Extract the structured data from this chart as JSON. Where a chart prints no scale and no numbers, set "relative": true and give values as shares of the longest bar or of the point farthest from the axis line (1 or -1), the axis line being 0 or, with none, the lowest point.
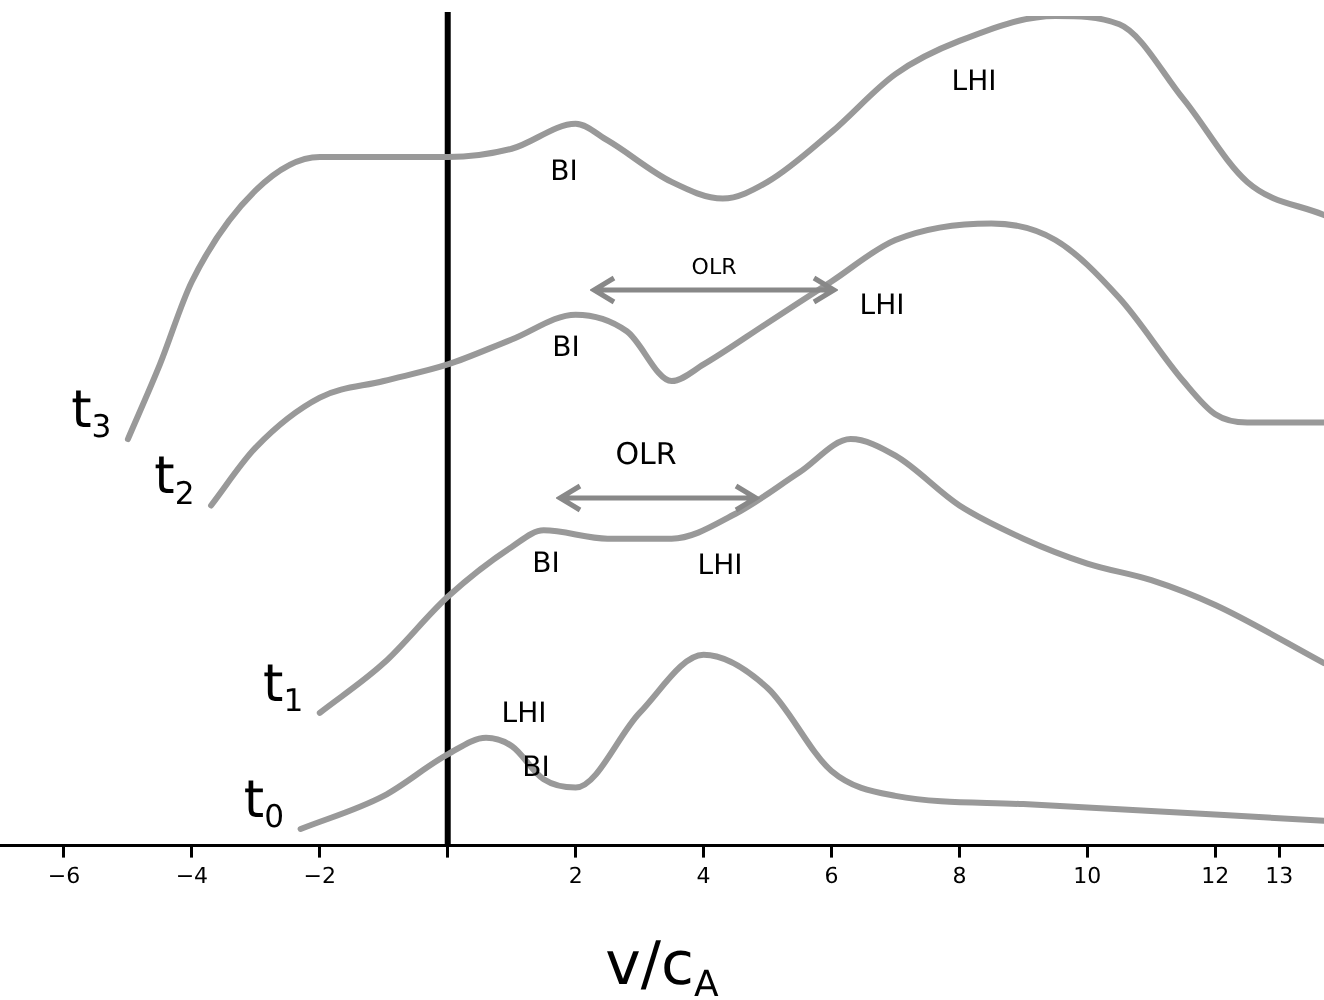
{
  "chart_data": {
    "type": "line",
    "relative": true,
    "xlabel": "v/c$_{A}$",
    "xlim": [
      -7,
      13.7
    ],
    "xticks": [
      -6,
      -4,
      -2,
      {
        "value": 0,
        "label": null
      },
      2,
      4,
      6,
      8,
      10,
      12,
      13
    ],
    "legend": false,
    "grid": false,
    "marker": "none",
    "line_style": "solid",
    "tick_labels": "x",
    "ref_lines": [
      {
        "axis": "x",
        "value": 0,
        "color": "#000000"
      }
    ],
    "series": [
      {
        "name": "t$_{3}$",
        "color": "#999999",
        "x": [
          -5,
          -4.5,
          -4,
          -3,
          -2,
          -1,
          0,
          1,
          2,
          2.5,
          3.5,
          4.3,
          5,
          6,
          7,
          8,
          9.5,
          10.5,
          11.5,
          12.5,
          13.7
        ],
        "values": [
          0.49,
          0.58,
          0.68,
          0.79,
          0.83,
          0.83,
          0.83,
          0.84,
          0.87,
          0.85,
          0.8,
          0.78,
          0.8,
          0.86,
          0.93,
          0.97,
          1.0,
          0.99,
          0.9,
          0.8,
          0.76
        ]
      },
      {
        "name": "t$_{2}$",
        "color": "#999999",
        "x": [
          -3.7,
          -3,
          -2,
          -1,
          0,
          1,
          2,
          2.8,
          3.5,
          4,
          5,
          6,
          7,
          8.5,
          9.5,
          10.5,
          11.5,
          12,
          12.5,
          13.7
        ],
        "values": [
          0.41,
          0.48,
          0.54,
          0.56,
          0.58,
          0.61,
          0.64,
          0.62,
          0.56,
          0.58,
          0.63,
          0.68,
          0.73,
          0.75,
          0.73,
          0.66,
          0.56,
          0.52,
          0.51,
          0.51
        ]
      },
      {
        "name": "t$_{1}$",
        "color": "#999999",
        "x": [
          -2,
          -1,
          0,
          1,
          1.5,
          2.5,
          3.5,
          4.5,
          5.5,
          6.3,
          7,
          8,
          9,
          10,
          11,
          12,
          13.7
        ],
        "values": [
          0.16,
          0.22,
          0.3,
          0.36,
          0.38,
          0.37,
          0.37,
          0.4,
          0.45,
          0.49,
          0.47,
          0.41,
          0.37,
          0.34,
          0.32,
          0.29,
          0.22
        ]
      },
      {
        "name": "t$_{0}$",
        "color": "#999999",
        "x": [
          -2.3,
          -1,
          0,
          0.6,
          1.0,
          1.5,
          2.0,
          3,
          4,
          5,
          6,
          7,
          9,
          13.7
        ],
        "values": [
          0.02,
          0.06,
          0.11,
          0.13,
          0.12,
          0.08,
          0.07,
          0.16,
          0.23,
          0.19,
          0.09,
          0.06,
          0.05,
          0.03
        ]
      }
    ],
    "annotations": [
      "BI",
      "LHI",
      "OLR",
      "LHI",
      "BI",
      "OLR",
      "BI",
      "LHI",
      "LHI",
      "BI"
    ]
  }
}
